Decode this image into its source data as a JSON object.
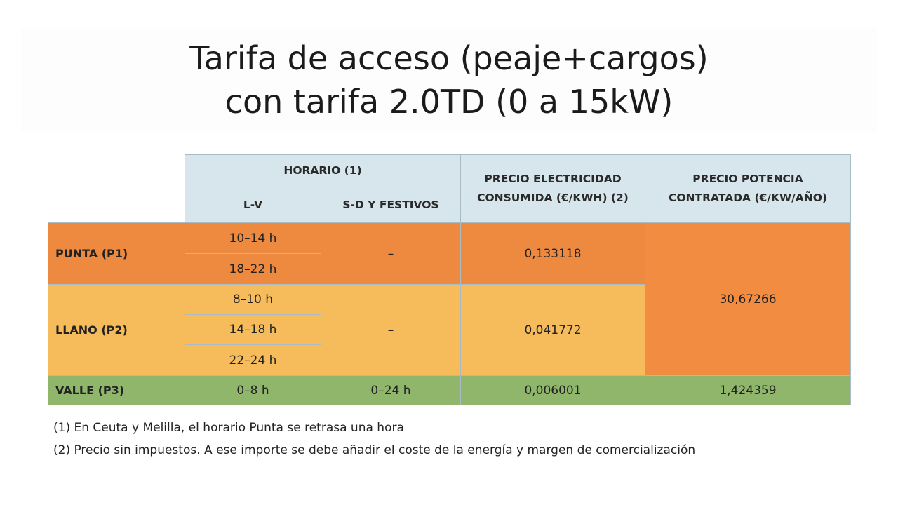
{
  "title": [
    "Tarifa de acceso (peaje+cargos)",
    "con tarifa 2.0TD (0 a 15kW)"
  ],
  "table": {
    "header": {
      "horario": "HORARIO (1)",
      "lv": "L-V",
      "sd": "S-D Y FESTIVOS",
      "electricidad": [
        "PRECIO ELECTRICIDAD",
        "CONSUMIDA (€/KWH) (2)"
      ],
      "potencia": [
        "PRECIO POTENCIA",
        "CONTRATADA (€/KW/AÑO)"
      ]
    },
    "rows": [
      {
        "period": "PUNTA (P1)",
        "lv": [
          "10–14 h",
          "18–22 h"
        ],
        "sd": "–",
        "electricidad": "0,133118"
      },
      {
        "period": "LLANO (P2)",
        "lv": [
          "8–10 h",
          "14–18 h",
          "22–24 h"
        ],
        "sd": "–",
        "electricidad": "0,041772"
      },
      {
        "period": "VALLE (P3)",
        "lv": [
          "0–8 h"
        ],
        "sd": "0–24 h",
        "electricidad": "0,006001",
        "potencia": "1,424359"
      }
    ],
    "potencia_p1_p2": "30,67266"
  },
  "footnotes": [
    "(1) En Ceuta y Melilla, el horario Punta se retrasa una hora",
    "(2) Precio sin impuestos. A ese importe se debe añadir el coste de la energía y margen de comercialización"
  ]
}
